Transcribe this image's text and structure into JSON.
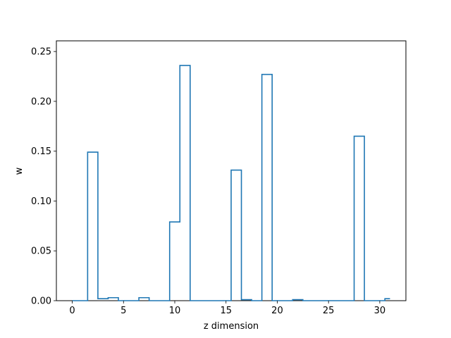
{
  "chart_data": {
    "type": "step",
    "title": "",
    "xlabel": "z dimension",
    "ylabel": "w",
    "xlim": [
      -1.55,
      32.55
    ],
    "ylim": [
      0,
      0.2607
    ],
    "x_ticks": [
      0,
      5,
      10,
      15,
      20,
      25,
      30
    ],
    "x_tick_labels": [
      "0",
      "5",
      "10",
      "15",
      "20",
      "25",
      "30"
    ],
    "y_ticks": [
      0.0,
      0.05,
      0.1,
      0.15,
      0.2,
      0.25
    ],
    "y_tick_labels": [
      "0.00",
      "0.05",
      "0.10",
      "0.15",
      "0.20",
      "0.25"
    ],
    "grid": false,
    "line_color": "#1f77b4",
    "x": [
      0,
      1,
      2,
      3,
      4,
      5,
      6,
      7,
      8,
      9,
      10,
      11,
      12,
      13,
      14,
      15,
      16,
      17,
      18,
      19,
      20,
      21,
      22,
      23,
      24,
      25,
      26,
      27,
      28,
      29,
      30,
      31
    ],
    "values": [
      0.0,
      0.0,
      0.149,
      0.002,
      0.003,
      0.0,
      0.0,
      0.003,
      0.0,
      0.0,
      0.079,
      0.236,
      0.0,
      0.0,
      0.0,
      0.0,
      0.131,
      0.001,
      0.0,
      0.227,
      0.0,
      0.0,
      0.001,
      0.0,
      0.0,
      0.0,
      0.0,
      0.0,
      0.165,
      0.0,
      0.0,
      0.002
    ]
  }
}
